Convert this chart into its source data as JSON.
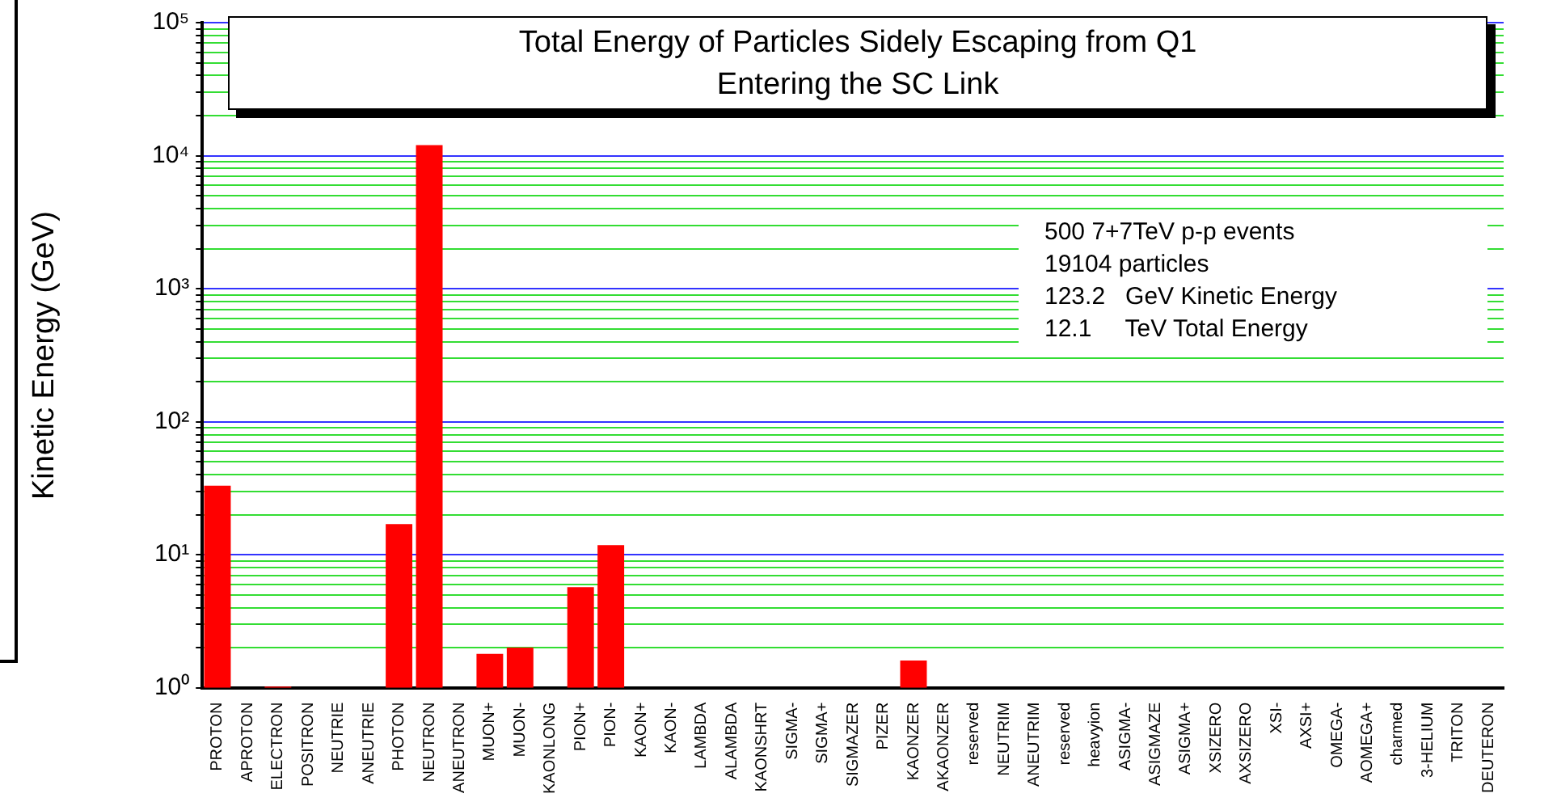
{
  "chart_data": {
    "type": "bar",
    "title": "Total Energy of Particles Sidely Escaping from Q1\nEntering the SC Link",
    "categories": [
      "PROTON",
      "APROTON",
      "ELECTRON",
      "POSITRON",
      "NEUTRIE",
      "ANEUTRIE",
      "PHOTON",
      "NEUTRON",
      "ANEUTRON",
      "MUON+",
      "MUON-",
      "KAONLONG",
      "PION+",
      "PION-",
      "KAON+",
      "KAON-",
      "LAMBDA",
      "ALAMBDA",
      "KAONSHRT",
      "SIGMA-",
      "SIGMA+",
      "SIGMAZER",
      "PIZER",
      "KAONZER",
      "AKAONZER",
      "reserved",
      "NEUTRIM",
      "ANEUTRIM",
      "reserved",
      "heavyion",
      "ASIGMA-",
      "ASIGMAZE",
      "ASIGMA+",
      "XSIZERO",
      "AXSIZERO",
      "XSI-",
      "AXSI+",
      "OMEGA-",
      "AOMEGA+",
      "charmed",
      "3-HELIUM",
      "TRITON",
      "DEUTERON"
    ],
    "values": [
      33,
      null,
      1.02,
      null,
      null,
      null,
      17,
      12000,
      null,
      1.8,
      2.0,
      null,
      5.7,
      11.8,
      null,
      null,
      null,
      null,
      null,
      null,
      null,
      null,
      null,
      1.6,
      null,
      null,
      null,
      null,
      null,
      null,
      null,
      null,
      null,
      null,
      null,
      null,
      null,
      null,
      null,
      null,
      null,
      null,
      null
    ],
    "color": "#ff0000",
    "log": true,
    "ylim": [
      1,
      100000
    ],
    "yticks": [
      {
        "value": 1,
        "label": "10⁰"
      },
      {
        "value": 2,
        "label": null
      },
      {
        "value": 3,
        "label": null
      },
      {
        "value": 4,
        "label": null
      },
      {
        "value": 5,
        "label": null
      },
      {
        "value": 6,
        "label": null
      },
      {
        "value": 7,
        "label": null
      },
      {
        "value": 8,
        "label": null
      },
      {
        "value": 9,
        "label": null
      },
      {
        "value": 10,
        "label": "10¹"
      },
      {
        "value": 20,
        "label": null
      },
      {
        "value": 30,
        "label": null
      },
      {
        "value": 40,
        "label": null
      },
      {
        "value": 50,
        "label": null
      },
      {
        "value": 60,
        "label": null
      },
      {
        "value": 70,
        "label": null
      },
      {
        "value": 80,
        "label": null
      },
      {
        "value": 90,
        "label": null
      },
      {
        "value": 100,
        "label": "10²"
      },
      {
        "value": 200,
        "label": null
      },
      {
        "value": 300,
        "label": null
      },
      {
        "value": 400,
        "label": null
      },
      {
        "value": 500,
        "label": null
      },
      {
        "value": 600,
        "label": null
      },
      {
        "value": 700,
        "label": null
      },
      {
        "value": 800,
        "label": null
      },
      {
        "value": 900,
        "label": null
      },
      {
        "value": 1000,
        "label": "10³"
      },
      {
        "value": 2000,
        "label": null
      },
      {
        "value": 3000,
        "label": null
      },
      {
        "value": 4000,
        "label": null
      },
      {
        "value": 5000,
        "label": null
      },
      {
        "value": 6000,
        "label": null
      },
      {
        "value": 7000,
        "label": null
      },
      {
        "value": 8000,
        "label": null
      },
      {
        "value": 9000,
        "label": null
      },
      {
        "value": 10000,
        "label": "10⁴"
      },
      {
        "value": 20000,
        "label": null
      },
      {
        "value": 30000,
        "label": null
      },
      {
        "value": 40000,
        "label": null
      },
      {
        "value": 50000,
        "label": null
      },
      {
        "value": 60000,
        "label": null
      },
      {
        "value": 70000,
        "label": null
      },
      {
        "value": 80000,
        "label": null
      },
      {
        "value": 90000,
        "label": null
      },
      {
        "value": 100000,
        "label": "10⁵"
      }
    ],
    "grid": "y",
    "legend": false,
    "annotations": [
      "500 7+7TeV p-p events\n19104 particles\n123.2   GeV Kinetic Energy\n12.1     TeV Total Energy",
      "Kinetic Energy (GeV)"
    ]
  }
}
